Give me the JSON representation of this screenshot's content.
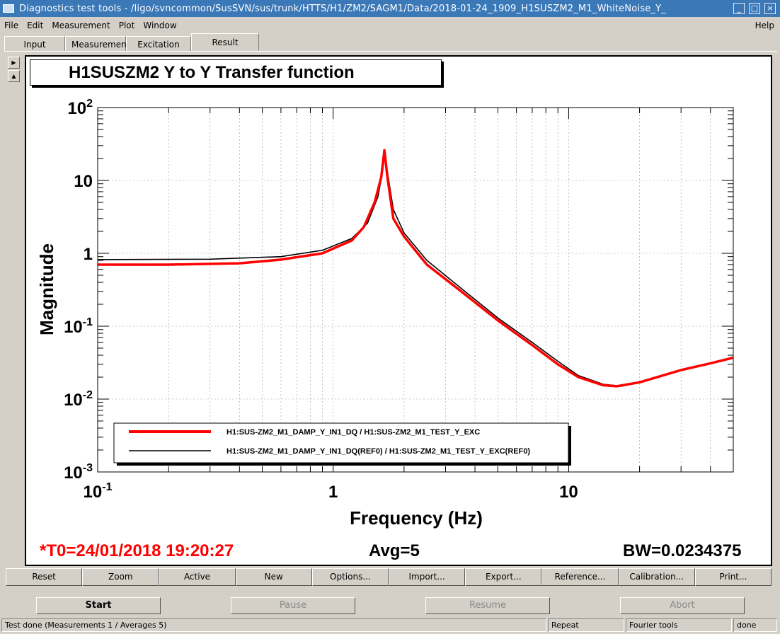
{
  "window": {
    "title": "Diagnostics test tools - /ligo/svncommon/SusSVN/sus/trunk/HTTS/H1/ZM2/SAGM1/Data/2018-01-24_1909_H1SUSZM2_M1_WhiteNoise_Y_"
  },
  "menu": {
    "items": [
      "File",
      "Edit",
      "Measurement",
      "Plot",
      "Window"
    ],
    "help": "Help"
  },
  "tabs": [
    {
      "label": "Input"
    },
    {
      "label": "Measurement"
    },
    {
      "label": "Excitation"
    },
    {
      "label": "Result"
    }
  ],
  "plot": {
    "title": "H1SUSZM2 Y to Y Transfer function",
    "t0": "*T0=24/01/2018 19:20:27",
    "avg": "Avg=5",
    "bw": "BW=0.0234375",
    "colors": {
      "series1": "#ff0000",
      "series2": "#000000",
      "t0": "#ff0000"
    }
  },
  "chart_data": {
    "type": "line",
    "xlabel": "Frequency (Hz)",
    "ylabel": "Magnitude",
    "xscale": "log",
    "yscale": "log",
    "xlim": [
      0.1,
      50
    ],
    "ylim": [
      0.001,
      100
    ],
    "x_ticks": [
      "10-1",
      "1",
      "10"
    ],
    "y_ticks": [
      "10-3",
      "10-2",
      "10-1",
      "1",
      "10",
      "102"
    ],
    "grid": true,
    "legend_position": "bottom-left",
    "series": [
      {
        "name": "H1:SUS-ZM2_M1_DAMP_Y_IN1_DQ / H1:SUS-ZM2_M1_TEST_Y_EXC",
        "color": "#ff0000",
        "points": [
          [
            0.1,
            0.7
          ],
          [
            0.2,
            0.7
          ],
          [
            0.4,
            0.73
          ],
          [
            0.6,
            0.82
          ],
          [
            0.9,
            1.0
          ],
          [
            1.2,
            1.5
          ],
          [
            1.35,
            2.3
          ],
          [
            1.5,
            5.0
          ],
          [
            1.6,
            11
          ],
          [
            1.65,
            26
          ],
          [
            1.7,
            11
          ],
          [
            1.8,
            3.0
          ],
          [
            2.0,
            1.7
          ],
          [
            2.5,
            0.7
          ],
          [
            3.5,
            0.3
          ],
          [
            5,
            0.12
          ],
          [
            7,
            0.055
          ],
          [
            9,
            0.03
          ],
          [
            11,
            0.02
          ],
          [
            14,
            0.0155
          ],
          [
            16,
            0.015
          ],
          [
            20,
            0.017
          ],
          [
            25,
            0.021
          ],
          [
            30,
            0.025
          ],
          [
            40,
            0.031
          ],
          [
            50,
            0.037
          ]
        ]
      },
      {
        "name": "H1:SUS-ZM2_M1_DAMP_Y_IN1_DQ(REF0) / H1:SUS-ZM2_M1_TEST_Y_EXC(REF0)",
        "color": "#000000",
        "points": [
          [
            0.1,
            0.82
          ],
          [
            0.3,
            0.83
          ],
          [
            0.6,
            0.9
          ],
          [
            0.9,
            1.1
          ],
          [
            1.2,
            1.6
          ],
          [
            1.4,
            2.6
          ],
          [
            1.55,
            6.0
          ],
          [
            1.62,
            13
          ],
          [
            1.65,
            22
          ],
          [
            1.7,
            13
          ],
          [
            1.8,
            4.0
          ],
          [
            2.0,
            1.9
          ],
          [
            2.5,
            0.8
          ],
          [
            3.5,
            0.33
          ],
          [
            5,
            0.13
          ],
          [
            7,
            0.06
          ],
          [
            9,
            0.033
          ],
          [
            11,
            0.021
          ],
          [
            14,
            0.016
          ],
          [
            17,
            0.015
          ]
        ]
      }
    ]
  },
  "toolbar": [
    "Reset",
    "Zoom",
    "Active",
    "New",
    "Options...",
    "Import...",
    "Export...",
    "Reference...",
    "Calibration...",
    "Print..."
  ],
  "controls": {
    "start": "Start",
    "pause": "Pause",
    "resume": "Resume",
    "abort": "Abort"
  },
  "status": {
    "message": "Test done (Measurements 1 / Averages 5)",
    "repeat": "Repeat",
    "tool": "Fourier tools",
    "state": "done"
  }
}
